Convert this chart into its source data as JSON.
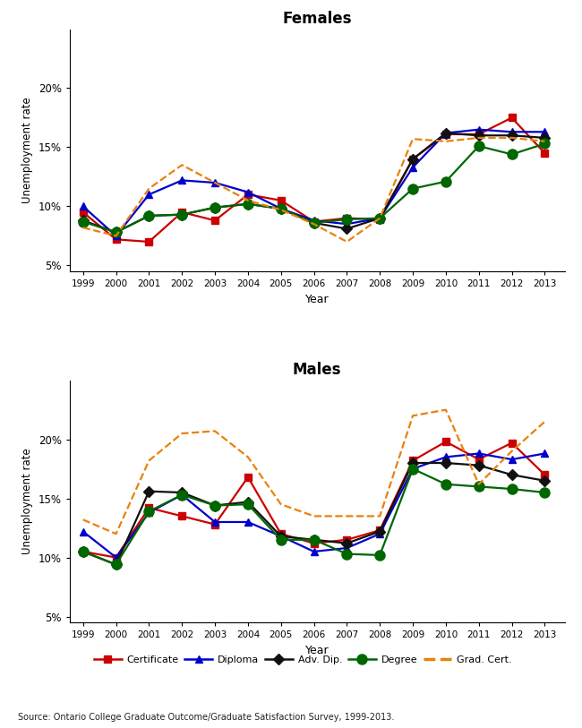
{
  "years": [
    1999,
    2000,
    2001,
    2002,
    2003,
    2004,
    2005,
    2006,
    2007,
    2008,
    2009,
    2010,
    2011,
    2012,
    2013
  ],
  "females": {
    "certificate": [
      9.5,
      7.2,
      7.0,
      9.5,
      8.8,
      11.0,
      10.5,
      8.7,
      9.0,
      8.9,
      14.0,
      16.1,
      16.1,
      17.5,
      14.5
    ],
    "diploma": [
      10.0,
      7.5,
      11.0,
      12.2,
      12.0,
      11.2,
      9.8,
      8.8,
      8.5,
      9.0,
      13.3,
      16.2,
      16.5,
      16.3,
      16.3
    ],
    "adv_dip": [
      8.8,
      7.8,
      9.2,
      9.3,
      9.9,
      10.2,
      9.8,
      8.6,
      8.1,
      9.0,
      14.0,
      16.2,
      16.0,
      16.0,
      15.8
    ],
    "degree": [
      8.7,
      7.8,
      9.2,
      9.3,
      9.9,
      10.2,
      9.8,
      8.6,
      8.9,
      9.0,
      11.5,
      12.1,
      15.1,
      14.4,
      15.3
    ],
    "grad_cert": [
      8.2,
      7.5,
      11.5,
      13.5,
      12.0,
      10.5,
      9.7,
      8.5,
      7.0,
      9.0,
      15.7,
      15.5,
      15.8,
      15.8,
      15.5
    ]
  },
  "males": {
    "certificate": [
      10.5,
      10.0,
      14.2,
      13.5,
      12.8,
      16.8,
      12.0,
      11.2,
      11.5,
      12.3,
      18.2,
      19.8,
      18.3,
      19.7,
      17.0
    ],
    "diploma": [
      12.2,
      10.0,
      13.8,
      15.3,
      13.0,
      13.0,
      11.8,
      10.5,
      10.8,
      12.0,
      17.5,
      18.5,
      18.8,
      18.3,
      18.8
    ],
    "adv_dip": [
      10.5,
      9.4,
      15.6,
      15.5,
      14.4,
      14.7,
      11.8,
      11.5,
      11.2,
      12.2,
      18.0,
      18.0,
      17.8,
      17.0,
      16.5
    ],
    "degree": [
      10.5,
      9.4,
      13.9,
      15.3,
      14.4,
      14.5,
      11.5,
      11.5,
      10.3,
      10.2,
      17.5,
      16.2,
      16.0,
      15.8,
      15.5
    ],
    "grad_cert": [
      13.2,
      12.0,
      18.2,
      20.5,
      20.7,
      18.5,
      14.5,
      13.5,
      13.5,
      13.5,
      22.0,
      22.5,
      16.2,
      19.0,
      21.5
    ]
  },
  "series_styles": {
    "certificate": {
      "color": "#cc0000",
      "marker": "s",
      "linestyle": "-",
      "label": "Certificate",
      "markersize": 6
    },
    "diploma": {
      "color": "#0000cc",
      "marker": "^",
      "linestyle": "-",
      "label": "Diploma",
      "markersize": 6
    },
    "adv_dip": {
      "color": "#111111",
      "marker": "D",
      "linestyle": "-",
      "label": "Adv. Dip.",
      "markersize": 6
    },
    "degree": {
      "color": "#006600",
      "marker": "o",
      "linestyle": "-",
      "label": "Degree",
      "markersize": 8
    },
    "grad_cert": {
      "color": "#e8820c",
      "marker": "None",
      "linestyle": "--",
      "label": "Grad. Cert.",
      "markersize": 0
    }
  },
  "ylim_females": [
    4.5,
    25
  ],
  "ylim_males": [
    4.5,
    25
  ],
  "yticks": [
    5,
    10,
    15,
    20
  ],
  "ytick_labels": [
    "5%",
    "10%",
    "15%",
    "20%"
  ],
  "xlabel": "Year",
  "ylabel": "Unemployment rate",
  "title_females": "Females",
  "title_males": "Males",
  "source_text": "Source: Ontario College Graduate Outcome/Graduate Satisfaction Survey, 1999-2013.",
  "background_color": "#ffffff",
  "linewidth": 1.6
}
